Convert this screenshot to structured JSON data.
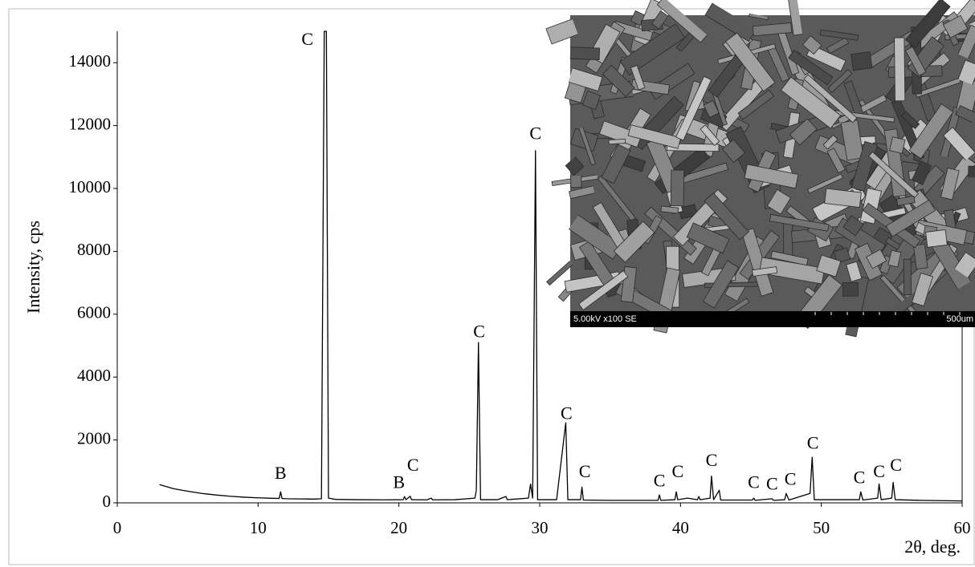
{
  "chart_data": {
    "type": "line",
    "x_label": "2θ, deg.",
    "y_label": "Intensity, cps",
    "xlim": [
      0,
      60
    ],
    "xticks": [
      0,
      10,
      20,
      30,
      40,
      50,
      60
    ],
    "ylim": [
      0,
      15000
    ],
    "yticks": [
      0,
      2000,
      4000,
      6000,
      8000,
      10000,
      12000,
      14000
    ],
    "grid": false,
    "series": [
      {
        "color": "#000000",
        "x": [
          3,
          4,
          5,
          6,
          7,
          8,
          9,
          10,
          11,
          11.5,
          11.6,
          11.7,
          12,
          13,
          14,
          14.5,
          14.7,
          14.85,
          15,
          15.5,
          17,
          19,
          20.3,
          20.4,
          20.5,
          20.8,
          20.9,
          22,
          22.3,
          22.4,
          24,
          25.4,
          25.5,
          25.65,
          25.8,
          27,
          27.6,
          27.7,
          29.2,
          29.35,
          29.5,
          29.7,
          29.85,
          31.2,
          31.85,
          32,
          32.9,
          33,
          33.1,
          35,
          38.4,
          38.5,
          38.6,
          39.6,
          39.7,
          39.8,
          40.5,
          41.2,
          41.3,
          41.4,
          42.1,
          42.2,
          42.35,
          42.75,
          42.85,
          45.1,
          45.2,
          45.3,
          46.5,
          46.6,
          47.4,
          47.5,
          47.7,
          49.2,
          49.35,
          49.5,
          52.7,
          52.8,
          52.95,
          54,
          54.1,
          54.25,
          55,
          55.1,
          55.25,
          57,
          60
        ],
        "values": [
          580,
          450,
          370,
          300,
          250,
          210,
          180,
          160,
          145,
          140,
          350,
          140,
          130,
          125,
          120,
          130,
          15000,
          15000,
          150,
          110,
          100,
          95,
          100,
          200,
          100,
          210,
          100,
          95,
          150,
          95,
          100,
          150,
          400,
          5100,
          100,
          100,
          200,
          100,
          150,
          600,
          150,
          11200,
          100,
          100,
          2550,
          100,
          100,
          500,
          90,
          80,
          80,
          250,
          80,
          100,
          350,
          100,
          150,
          100,
          200,
          100,
          150,
          850,
          100,
          400,
          90,
          90,
          150,
          80,
          130,
          80,
          100,
          300,
          90,
          300,
          1450,
          100,
          100,
          350,
          90,
          150,
          600,
          100,
          150,
          650,
          100,
          80,
          60
        ]
      }
    ],
    "annotations": [
      "C",
      "B",
      "B",
      "C",
      "C",
      "C",
      "C",
      "C",
      "C",
      "C",
      "C",
      "C",
      "C",
      "C",
      "C",
      "C",
      "C",
      "C"
    ],
    "inset": {
      "caption_left": "5.00kV x100 SE",
      "caption_right": "500um"
    }
  }
}
